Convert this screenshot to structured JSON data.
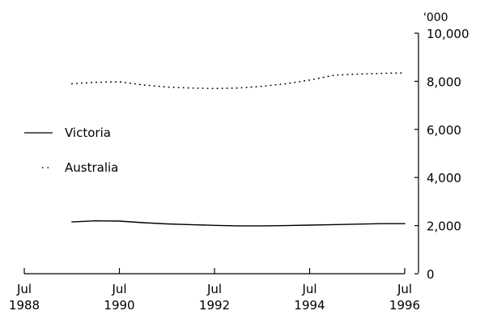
{
  "chart_data": {
    "type": "line",
    "title": "",
    "xlabel": "",
    "ylabel": "'000",
    "x_ticks": [
      {
        "month": "Jul",
        "year": "1988",
        "x": 1988.5
      },
      {
        "month": "Jul",
        "year": "1990",
        "x": 1990.5
      },
      {
        "month": "Jul",
        "year": "1992",
        "x": 1992.5
      },
      {
        "month": "Jul",
        "year": "1994",
        "x": 1994.5
      },
      {
        "month": "Jul",
        "year": "1996",
        "x": 1996.5
      }
    ],
    "y_ticks": [
      "0",
      "2,000",
      "4,000",
      "6,000",
      "8,000",
      "10,000"
    ],
    "y_tick_values": [
      0,
      2000,
      4000,
      6000,
      8000,
      10000
    ],
    "xlim": [
      1988.5,
      1996.5
    ],
    "ylim": [
      0,
      10000
    ],
    "y_axis_position": "right",
    "grid": false,
    "legend_position": "left-center",
    "series": [
      {
        "name": "Victoria",
        "style": "solid",
        "color": "#000000",
        "x": [
          1989.5,
          1990.0,
          1990.5,
          1991.0,
          1991.5,
          1992.0,
          1992.5,
          1993.0,
          1993.5,
          1994.0,
          1994.5,
          1995.0,
          1995.5,
          1996.0,
          1996.5
        ],
        "y": [
          2150,
          2200,
          2190,
          2120,
          2070,
          2040,
          2010,
          1990,
          1990,
          2000,
          2020,
          2040,
          2060,
          2080,
          2080
        ]
      },
      {
        "name": "Australia",
        "style": "dotted",
        "color": "#000000",
        "x": [
          1989.5,
          1990.0,
          1990.5,
          1991.0,
          1991.5,
          1992.0,
          1992.5,
          1993.0,
          1993.5,
          1994.0,
          1994.5,
          1995.0,
          1995.5,
          1996.0,
          1996.5
        ],
        "y": [
          7900,
          7960,
          7980,
          7850,
          7760,
          7720,
          7700,
          7720,
          7790,
          7900,
          8050,
          8250,
          8300,
          8330,
          8350
        ]
      }
    ]
  }
}
